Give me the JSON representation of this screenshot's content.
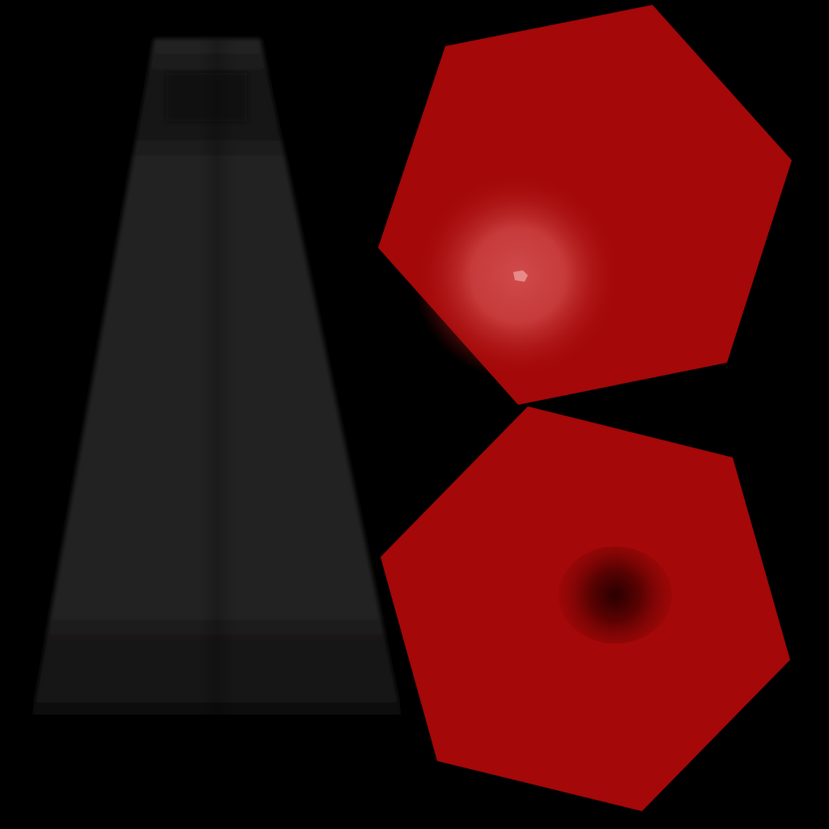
{
  "atlas": {
    "background_color": "#000000",
    "pieces": [
      {
        "name": "cape-panel",
        "base_color": "#222222",
        "shade_color": "#0e0e0e"
      },
      {
        "name": "hexagon-top",
        "base_color": "#a40808",
        "highlight_color": "#d04a4a",
        "spot_color": "#e88a8a"
      },
      {
        "name": "hexagon-bottom",
        "base_color": "#a40808",
        "shadow_color": "#2a0000"
      }
    ]
  }
}
